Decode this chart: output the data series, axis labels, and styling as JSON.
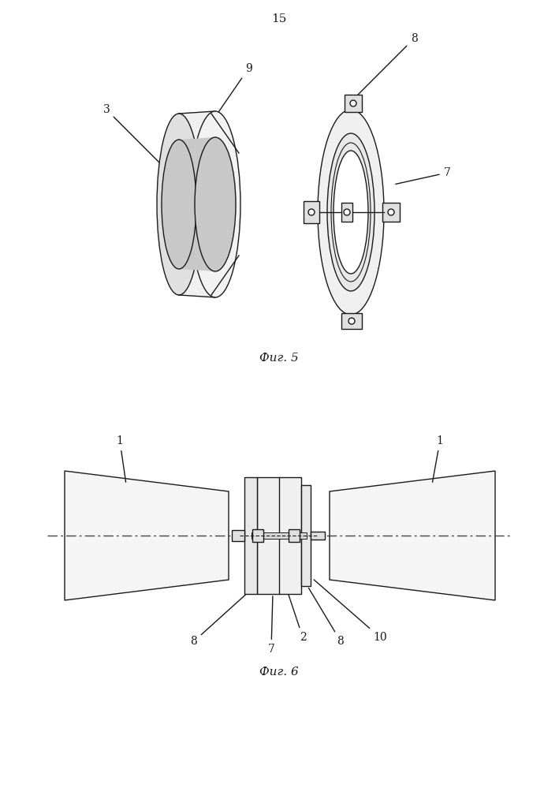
{
  "page_number": "15",
  "fig5_caption": "Фиг. 5",
  "fig6_caption": "Фиг. 6",
  "bg_color": "#ffffff",
  "line_color": "#1a1a1a",
  "gray_fill": "#c8c8c8",
  "light_gray": "#e8e8e8",
  "dash_color": "#444444"
}
